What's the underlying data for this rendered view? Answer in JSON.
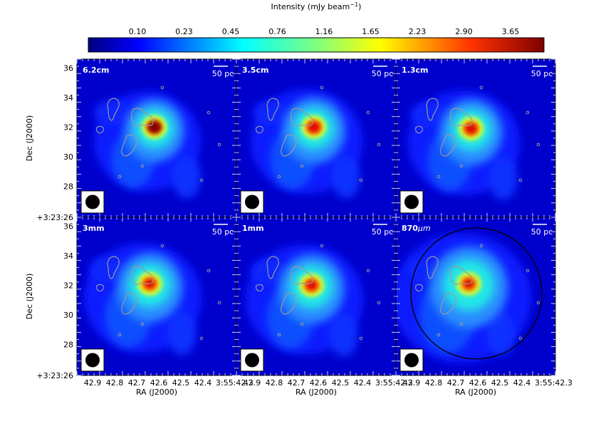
{
  "colorbar": {
    "title": "Intensity (mJy beam",
    "title_exp": "−1",
    "title_close": ")",
    "ticks": [
      "0.10",
      "0.23",
      "0.45",
      "0.76",
      "1.16",
      "1.65",
      "2.23",
      "2.90",
      "3.65"
    ],
    "colors": [
      "#00007f",
      "#0000ff",
      "#007fff",
      "#00ffff",
      "#7fff7f",
      "#ffff00",
      "#ff7f00",
      "#ff0000",
      "#7f0000"
    ]
  },
  "chart_data": {
    "type": "heatmap",
    "description_units": "mJy beam^-1",
    "panels": [
      {
        "label": "6.2cm",
        "peak": 3.9,
        "peak_ra": "42.61",
        "peak_dec": 32.0,
        "extent": 1.0
      },
      {
        "label": "3.5cm",
        "peak": 3.3,
        "peak_ra": "42.61",
        "peak_dec": 32.0,
        "extent": 1.05
      },
      {
        "label": "1.3cm",
        "peak": 3.1,
        "peak_ra": "42.62",
        "peak_dec": 31.9,
        "extent": 1.05
      },
      {
        "label": "3mm",
        "peak": 2.6,
        "peak_ra": "42.63",
        "peak_dec": 32.1,
        "extent": 1.1
      },
      {
        "label": "1mm",
        "peak": 2.8,
        "peak_ra": "42.62",
        "peak_dec": 32.0,
        "extent": 1.1
      },
      {
        "label": "870",
        "label_unit": "μm",
        "peak": 2.5,
        "peak_ra": "42.63",
        "peak_dec": 32.1,
        "extent": 1.3,
        "circle": true
      }
    ],
    "scale_bar": "50 pc",
    "xlabel": "RA (J2000)",
    "ylabel": "Dec (J2000)",
    "xticks": [
      "42.9",
      "42.8",
      "42.7",
      "42.6",
      "42.5",
      "42.4",
      "3:55:42.3"
    ],
    "xticks_last_panel": [
      "42.9",
      "42.8",
      "42.7",
      "42.6",
      "42.5",
      "42.4",
      "3:55:42.3"
    ],
    "yticks": [
      "36",
      "34",
      "32",
      "30",
      "28",
      "+3:23:26"
    ]
  }
}
